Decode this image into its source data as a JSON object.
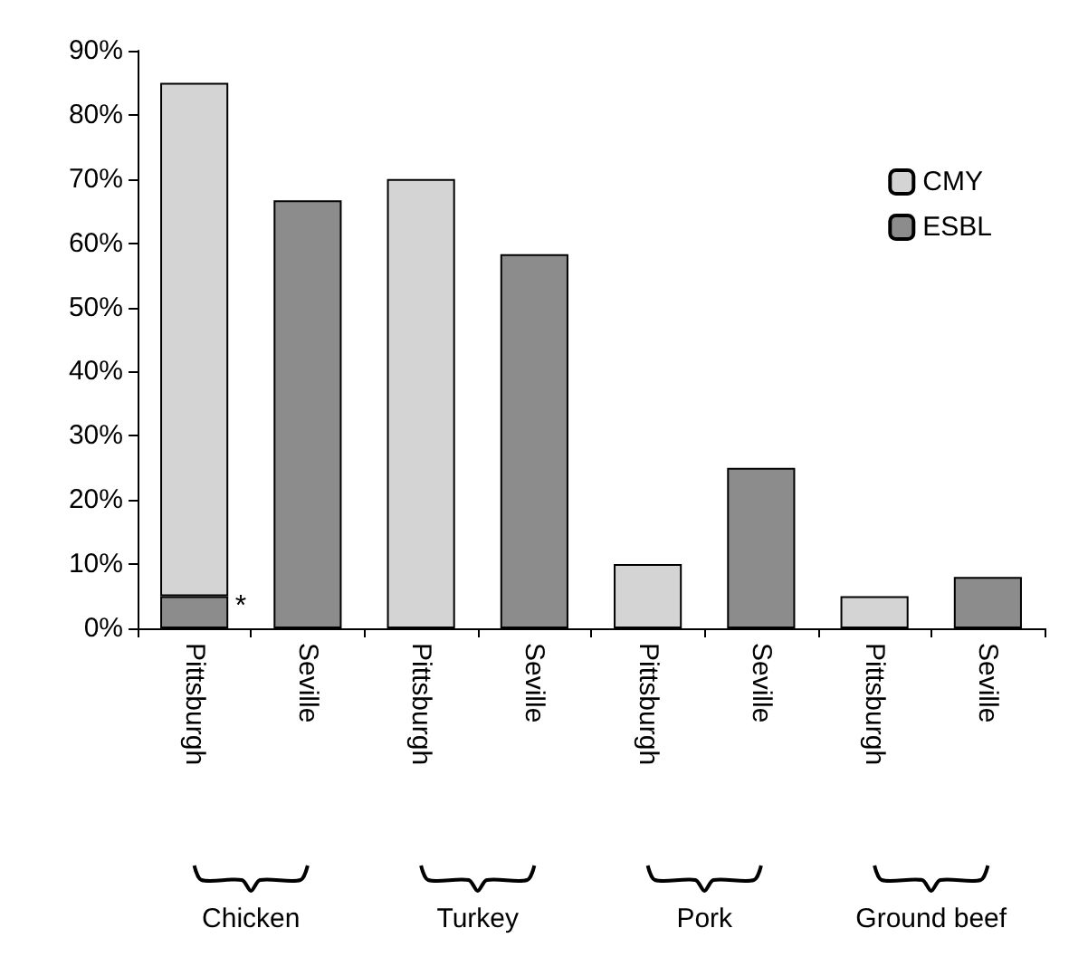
{
  "chart_data": {
    "type": "bar",
    "stacked": true,
    "categories": [
      "Pittsburgh",
      "Seville",
      "Pittsburgh",
      "Seville",
      "Pittsburgh",
      "Seville",
      "Pittsburgh",
      "Seville"
    ],
    "series": [
      {
        "name": "ESBL",
        "color": "#8c8c8c",
        "values": [
          5,
          66.7,
          null,
          58.3,
          null,
          25,
          null,
          8
        ]
      },
      {
        "name": "CMY",
        "color": "#d4d4d4",
        "values": [
          80,
          null,
          70,
          null,
          10,
          null,
          5,
          null
        ]
      }
    ],
    "ylim": [
      0,
      90
    ],
    "yticks": [
      {
        "value": 0,
        "label": "0%"
      },
      {
        "value": 10,
        "label": "10%"
      },
      {
        "value": 20,
        "label": "20%"
      },
      {
        "value": 30,
        "label": "30%"
      },
      {
        "value": 40,
        "label": "40%"
      },
      {
        "value": 50,
        "label": "50%"
      },
      {
        "value": 60,
        "label": "60%"
      },
      {
        "value": 70,
        "label": "70%"
      },
      {
        "value": 80,
        "label": "80%"
      },
      {
        "value": 90,
        "label": "90%"
      }
    ],
    "grid": false,
    "legend": "top right",
    "annotations": [
      "*",
      "Chicken",
      "Turkey",
      "Pork",
      "Ground beef"
    ]
  }
}
